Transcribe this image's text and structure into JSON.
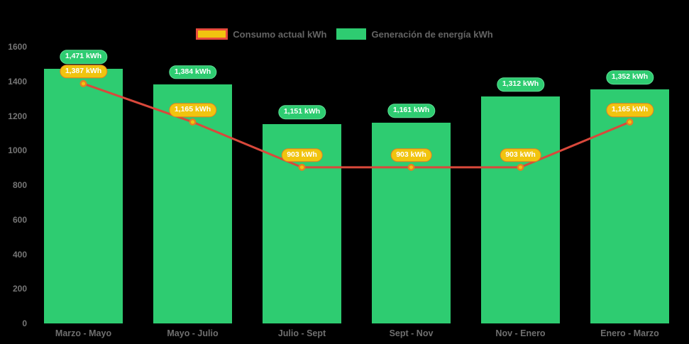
{
  "legend": {
    "items": [
      {
        "label": "Consumo actual kWh",
        "type": "line",
        "swatch_fill": "#f1c40f",
        "swatch_border": "#e74c3c"
      },
      {
        "label": "Generación de energía kWh",
        "type": "bar",
        "swatch_fill": "#2ecc71",
        "swatch_border": "#2ecc71"
      }
    ]
  },
  "chart_data": {
    "type": "bar+line",
    "title": "",
    "xlabel": "",
    "ylabel": "",
    "categories": [
      "Marzo - Mayo",
      "Mayo - Julio",
      "Julio - Sept",
      "Sept - Nov",
      "Nov - Enero",
      "Enero - Marzo"
    ],
    "series": [
      {
        "name": "Generación de energía kWh",
        "type": "bar",
        "color": "#2ecc71",
        "values": [
          1471,
          1384,
          1151,
          1161,
          1312,
          1352
        ],
        "labels": [
          "1,471 kWh",
          "1,384 kWh",
          "1,151 kWh",
          "1,161 kWh",
          "1,312 kWh",
          "1,352 kWh"
        ],
        "label_bg": "#2ecc71",
        "label_border": "#5fe095",
        "label_text_color": "#ffffff"
      },
      {
        "name": "Consumo actual kWh",
        "type": "line",
        "color": "#d9483b",
        "marker_fill": "#f1c40f",
        "marker_stroke": "#e67e22",
        "values": [
          1387,
          1165,
          903,
          903,
          903,
          1165
        ],
        "labels": [
          "1,387 kWh",
          "1,165 kWh",
          "903 kWh",
          "903 kWh",
          "903 kWh",
          "1,165 kWh"
        ],
        "label_bg": "#f1c40f",
        "label_border": "#e67e22",
        "label_text_color": "#ffffff"
      }
    ],
    "ylim": [
      0,
      1600
    ],
    "yticks": [
      "0",
      "200",
      "400",
      "600",
      "800",
      "1000",
      "1200",
      "1400",
      "1600"
    ],
    "grid": false,
    "legend_position": "top",
    "background": "#000000"
  }
}
